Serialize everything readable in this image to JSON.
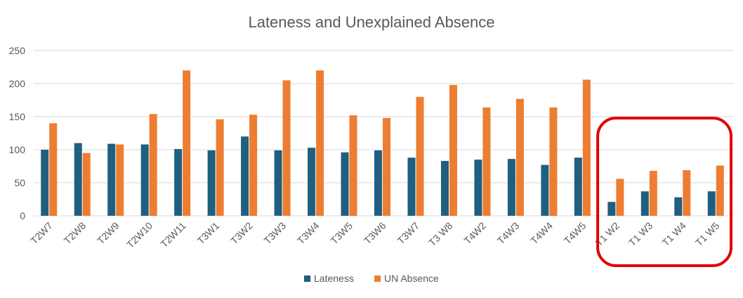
{
  "chart_data": {
    "type": "bar",
    "title": "Lateness and Unexplained Absence",
    "xlabel": "",
    "ylabel": "",
    "ylim": [
      0,
      250
    ],
    "yticks": [
      0,
      50,
      100,
      150,
      200,
      250
    ],
    "grid": true,
    "legend_position": "bottom",
    "categories": [
      "T2W7",
      "T2W8",
      "T2W9",
      "T2W10",
      "T2W11",
      "T3W1",
      "T3W2",
      "T3W3",
      "T3W4",
      "T3W5",
      "T3W6",
      "T3W7",
      "T3 W8",
      "T4W2",
      "T4W3",
      "T4W4",
      "T4W5",
      "T1 W2",
      "T1 W3",
      "T1 W4",
      "T1 W5"
    ],
    "series": [
      {
        "name": "Lateness",
        "color": "#1f5f7f",
        "values": [
          100,
          110,
          109,
          108,
          101,
          99,
          120,
          99,
          103,
          96,
          99,
          88,
          83,
          85,
          86,
          77,
          88,
          21,
          37,
          28,
          37
        ]
      },
      {
        "name": "UN Absence",
        "color": "#ed7d31",
        "values": [
          140,
          95,
          108,
          154,
          220,
          146,
          153,
          205,
          220,
          152,
          148,
          180,
          198,
          164,
          177,
          164,
          206,
          56,
          68,
          69,
          76
        ]
      }
    ],
    "annotations": [
      {
        "type": "rounded-rectangle",
        "color": "#e00000",
        "covers_categories": [
          "T1 W2",
          "T1 W3",
          "T1 W4",
          "T1 W5"
        ]
      }
    ]
  }
}
